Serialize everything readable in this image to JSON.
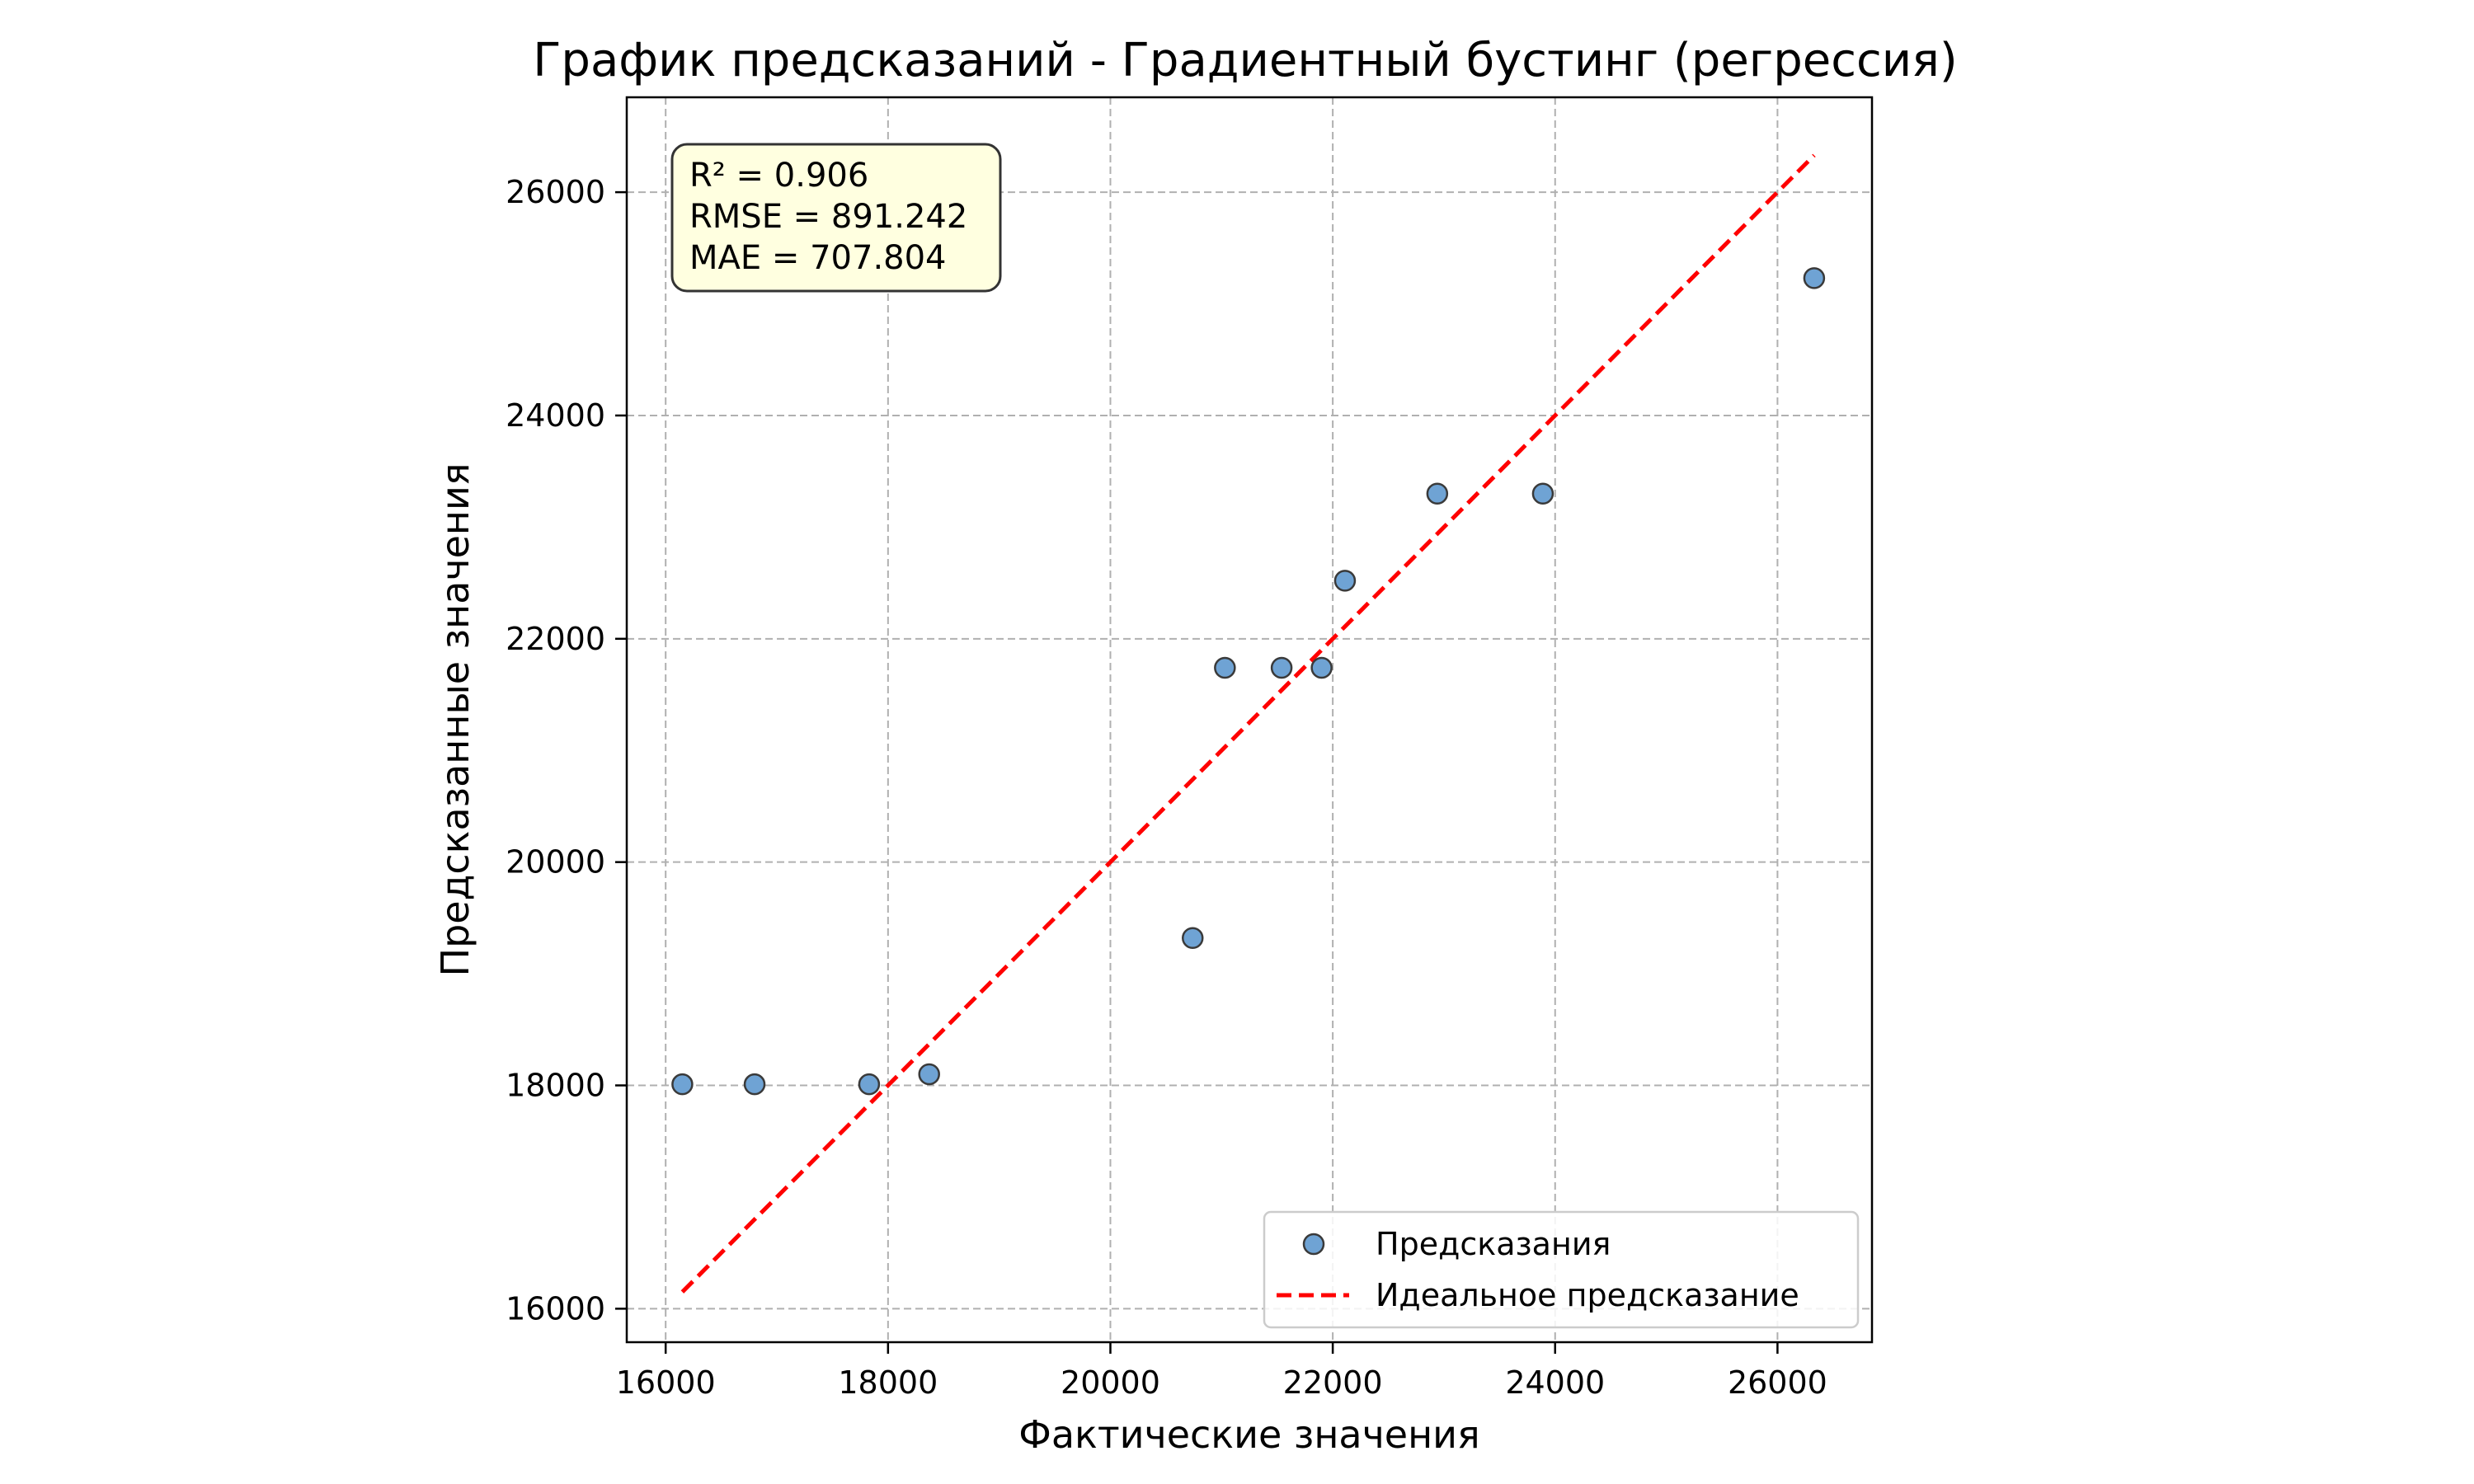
{
  "chart_data": {
    "type": "scatter",
    "title": "График предсказаний - Градиентный бустинг (регрессия)",
    "xlabel": "Фактические значения",
    "ylabel": "Предсказанные значения",
    "xlim": [
      15650,
      26850
    ],
    "ylim": [
      15700,
      26850
    ],
    "x_ticks": [
      16000,
      18000,
      20000,
      22000,
      24000,
      26000
    ],
    "y_ticks": [
      16000,
      18000,
      20000,
      22000,
      24000,
      26000
    ],
    "x_tick_labels": [
      "16000",
      "18000",
      "20000",
      "22000",
      "24000",
      "26000"
    ],
    "y_tick_labels": [
      "16000",
      "18000",
      "20000",
      "22000",
      "24000",
      "26000"
    ],
    "grid": true,
    "legend_position": "bottom-right",
    "series": [
      {
        "name": "Предсказания",
        "kind": "scatter",
        "color": "#6fa3d4",
        "edge_color": "#3a3a3a",
        "x": [
          16150,
          16800,
          17830,
          18370,
          20740,
          21030,
          21540,
          21900,
          22110,
          22940,
          23890,
          26330
        ],
        "y": [
          18010,
          18010,
          18010,
          18100,
          19320,
          21740,
          21740,
          21740,
          22520,
          23300,
          23300,
          25230
        ]
      },
      {
        "name": "Идеальное предсказание",
        "kind": "line",
        "color": "#ff0000",
        "dashed": true,
        "x": [
          16150,
          26330
        ],
        "y": [
          16150,
          26330
        ]
      }
    ],
    "annotation": {
      "lines": [
        "R² = 0.906",
        "RMSE = 891.242",
        "MAE = 707.804"
      ],
      "background": "#ffffe0",
      "position": "top-left"
    }
  }
}
